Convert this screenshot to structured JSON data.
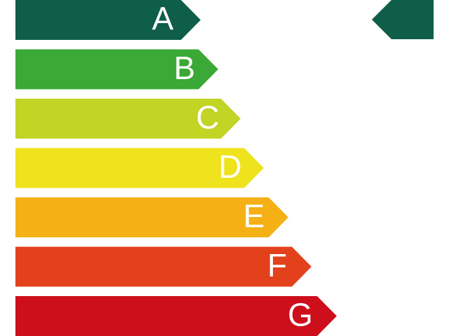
{
  "ratings": [
    {
      "label": "A",
      "color": "#0e5e4a"
    },
    {
      "label": "B",
      "color": "#3aa935"
    },
    {
      "label": "C",
      "color": "#c2d424"
    },
    {
      "label": "D",
      "color": "#eee31c"
    },
    {
      "label": "E",
      "color": "#f4b015"
    },
    {
      "label": "F",
      "color": "#e3411c"
    },
    {
      "label": "G",
      "color": "#cd0e1b"
    }
  ],
  "indicator": {
    "color": "#0e5e4a"
  }
}
